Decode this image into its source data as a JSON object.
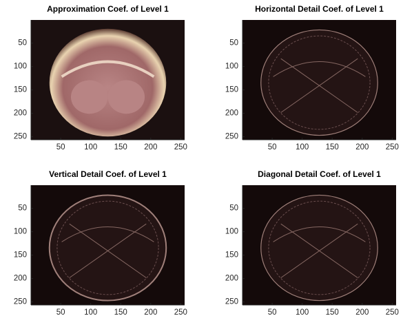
{
  "chart_data": [
    {
      "type": "image",
      "title": "Approximation Coef. of Level 1",
      "xlim": [
        0.5,
        256.5
      ],
      "ylim": [
        0.5,
        256.5
      ],
      "y_reversed": true,
      "xticks": [
        50,
        100,
        150,
        200,
        250
      ],
      "yticks": [
        50,
        100,
        150,
        200,
        250
      ]
    },
    {
      "type": "image",
      "title": "Horizontal Detail Coef. of Level 1",
      "xlim": [
        0.5,
        256.5
      ],
      "ylim": [
        0.5,
        256.5
      ],
      "y_reversed": true,
      "xticks": [
        50,
        100,
        150,
        200,
        250
      ],
      "yticks": [
        50,
        100,
        150,
        200,
        250
      ]
    },
    {
      "type": "image",
      "title": "Vertical Detail Coef. of Level 1",
      "xlim": [
        0.5,
        256.5
      ],
      "ylim": [
        0.5,
        256.5
      ],
      "y_reversed": true,
      "xticks": [
        50,
        100,
        150,
        200,
        250
      ],
      "yticks": [
        50,
        100,
        150,
        200,
        250
      ]
    },
    {
      "type": "image",
      "title": "Diagonal Detail Coef. of Level 1",
      "xlim": [
        0.5,
        256.5
      ],
      "ylim": [
        0.5,
        256.5
      ],
      "y_reversed": true,
      "xticks": [
        50,
        100,
        150,
        200,
        250
      ],
      "yticks": [
        50,
        100,
        150,
        200,
        250
      ]
    }
  ]
}
